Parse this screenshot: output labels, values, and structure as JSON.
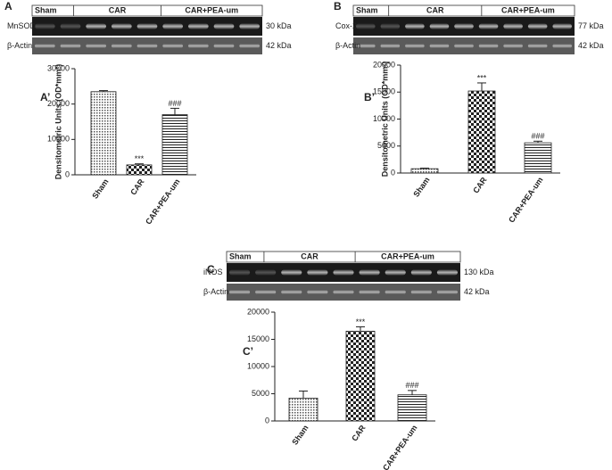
{
  "blots": [
    {
      "panel": "A",
      "groups": [
        "Sham",
        "CAR",
        "CAR+PEA-um"
      ],
      "rows": [
        {
          "protein": "MnSOD",
          "size": "30 kDa"
        },
        {
          "protein": "β-Actin",
          "size": "42 kDa"
        }
      ]
    },
    {
      "panel": "B",
      "groups": [
        "Sham",
        "CAR",
        "CAR+PEA-um"
      ],
      "rows": [
        {
          "protein": "Cox-2",
          "size": "77 kDa"
        },
        {
          "protein": "β-Actin",
          "size": "42 kDa"
        }
      ]
    },
    {
      "panel": "C",
      "groups": [
        "Sham",
        "CAR",
        "CAR+PEA-um"
      ],
      "rows": [
        {
          "protein": "iNOS",
          "size": "130 kDa"
        },
        {
          "protein": "β-Actin",
          "size": "42 kDa"
        }
      ]
    }
  ],
  "chart_data": [
    {
      "type": "bar",
      "panel": "A’",
      "ylabel": "Densitometric Units (OD*mm²)",
      "categories": [
        "Sham",
        "CAR",
        "CAR+PEA-um"
      ],
      "values": [
        23500,
        2800,
        17000
      ],
      "errors": [
        300,
        300,
        1800
      ],
      "significance": [
        null,
        "***",
        "###"
      ],
      "ylim": [
        0,
        30000
      ],
      "yticks": [
        0,
        10000,
        20000,
        30000
      ]
    },
    {
      "type": "bar",
      "panel": "B’",
      "ylabel": "Densitometric Units (OD*mm²)",
      "categories": [
        "Sham",
        "CAR",
        "CAR+PEA-um"
      ],
      "values": [
        800,
        15200,
        5600
      ],
      "errors": [
        100,
        1500,
        300
      ],
      "significance": [
        null,
        "***",
        "###"
      ],
      "ylim": [
        0,
        20000
      ],
      "yticks": [
        0,
        5000,
        10000,
        15000,
        20000
      ]
    },
    {
      "type": "bar",
      "panel": "C’",
      "categories": [
        "Sham",
        "CAR",
        "CAR+PEA-um"
      ],
      "values": [
        4200,
        16500,
        4800
      ],
      "errors": [
        1300,
        800,
        800
      ],
      "significance": [
        null,
        "***",
        "###"
      ],
      "ylim": [
        0,
        20000
      ],
      "yticks": [
        0,
        5000,
        10000,
        15000,
        20000
      ]
    }
  ]
}
